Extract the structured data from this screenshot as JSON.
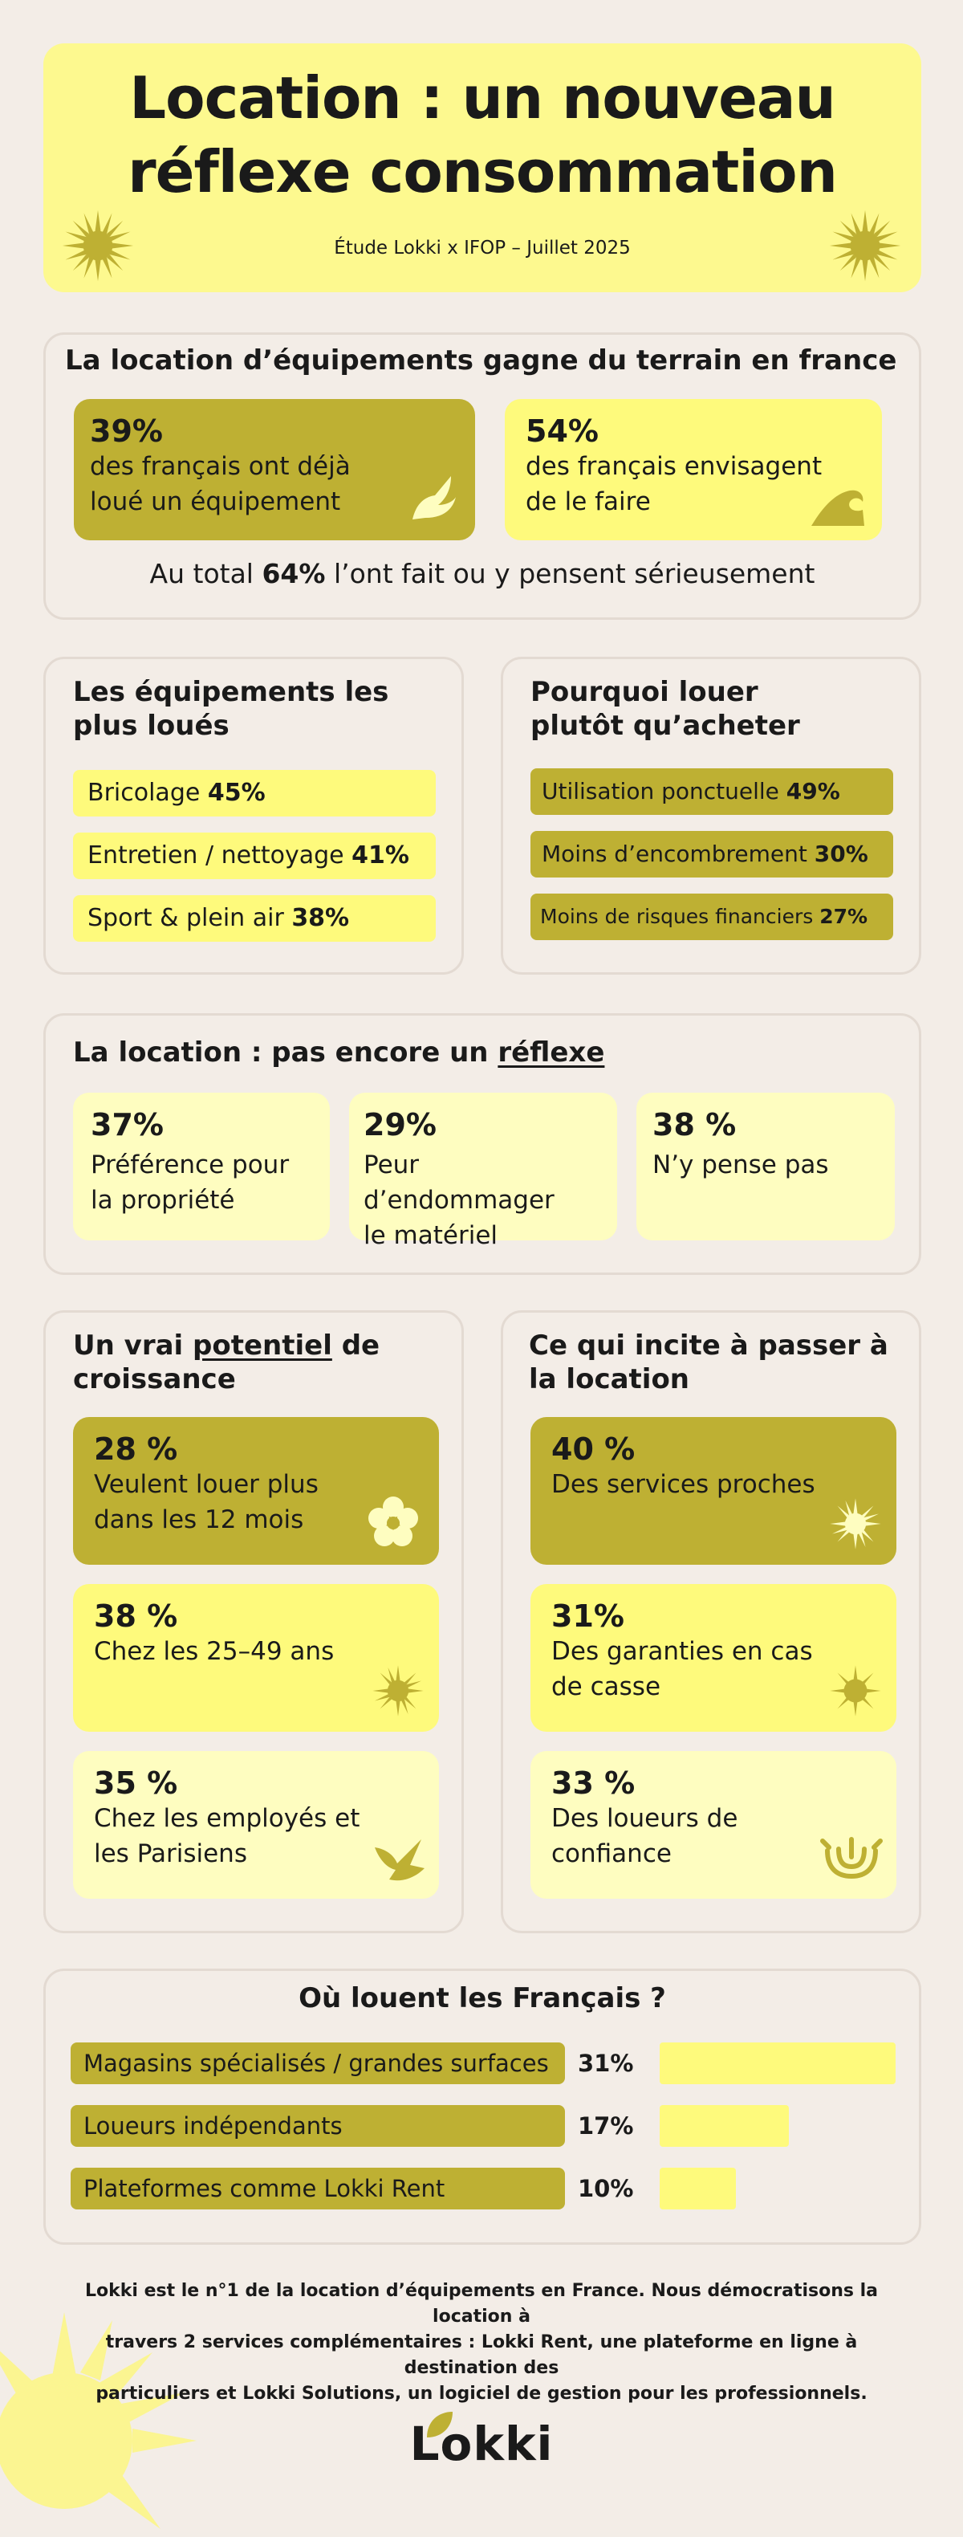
{
  "header": {
    "title_line1": "Location : un nouveau",
    "title_line2": "réflexe consommation",
    "subtitle": "Étude Lokki x IFOP – Juillet 2025"
  },
  "section1": {
    "title": "La location d’équipements gagne du terrain en france",
    "stat1": {
      "pct": "39%",
      "line1": "des français ont déjà",
      "line2": "loué un équipement"
    },
    "stat2": {
      "pct": "54%",
      "line1": "des français envisagent",
      "line2": "de le faire"
    },
    "total_prefix": "Au total ",
    "total_pct": "64%",
    "total_suffix": " l’ont fait ou y pensent sérieusement"
  },
  "section2": {
    "left": {
      "title_line1": "Les équipements les",
      "title_line2": "plus loués",
      "items": [
        {
          "label": "Bricolage ",
          "pct": "45%"
        },
        {
          "label": "Entretien / nettoyage ",
          "pct": "41%"
        },
        {
          "label": "Sport & plein air ",
          "pct": "38%"
        }
      ]
    },
    "right": {
      "title_line1": "Pourquoi louer",
      "title_line2": "plutôt qu’acheter",
      "items": [
        {
          "label": "Utilisation ponctuelle ",
          "pct": "49%"
        },
        {
          "label": "Moins d’encombrement ",
          "pct": "30%"
        },
        {
          "label": "Moins de risques financiers ",
          "pct": "27%"
        }
      ]
    }
  },
  "section3": {
    "title_prefix": "La location : pas encore un ",
    "title_underlined": "réflexe",
    "items": [
      {
        "pct": "37%",
        "line1": "Préférence pour",
        "line2": "la propriété"
      },
      {
        "pct": "29%",
        "line1": "Peur d’endommager",
        "line2": "le matériel"
      },
      {
        "pct": "38 %",
        "line1": "N’y pense pas",
        "line2": ""
      }
    ]
  },
  "section4": {
    "left": {
      "title_prefix": "Un vrai ",
      "title_underlined": "potentiel",
      "title_suffix": " de",
      "title_line2": "croissance",
      "items": [
        {
          "pct": "28 %",
          "line1": "Veulent louer plus",
          "line2": "dans les 12 mois",
          "icon": "flower-icon"
        },
        {
          "pct": "38 %",
          "line1": "Chez les 25–49 ans",
          "line2": "",
          "icon": "sun-icon"
        },
        {
          "pct": "35 %",
          "line1": "Chez les employés et",
          "line2": "les Parisiens",
          "icon": "bird-icon"
        }
      ]
    },
    "right": {
      "title_line1": "Ce qui incite à passer à",
      "title_line2": "la location",
      "items": [
        {
          "pct": "40 %",
          "line1": "Des services proches",
          "line2": "",
          "icon": "sun-icon"
        },
        {
          "pct": "31%",
          "line1": "Des garanties en cas",
          "line2": "de casse",
          "icon": "sun-icon"
        },
        {
          "pct": "33 %",
          "line1": "Des loueurs de",
          "line2": "confiance",
          "icon": "sunrise-icon"
        }
      ]
    }
  },
  "section5": {
    "title": "Où louent les Français ?",
    "chart_data": {
      "type": "bar",
      "categories": [
        "Magasins spécialisés / grandes surfaces",
        "Loueurs indépendants",
        "Plateformes comme Lokki Rent"
      ],
      "values": [
        31,
        17,
        10
      ],
      "value_labels": [
        "31%",
        "17%",
        "10%"
      ],
      "xlim": [
        0,
        31
      ]
    }
  },
  "footer": {
    "line1": "Lokki est le n°1 de la location d’équipements en France. Nous démocratisons la location à",
    "line2": "travers 2 services complémentaires : Lokki Rent, une plateforme en ligne à destination des",
    "line3": "particuliers et Lokki Solutions, un logiciel de gestion pour les professionnels.",
    "logo": "Lokki"
  },
  "colors": {
    "background": "#f3ede7",
    "olive": "#beb033",
    "yellow": "#fefa7c",
    "pale_yellow": "#fefdc0",
    "title_yellow": "#fdf98f"
  }
}
